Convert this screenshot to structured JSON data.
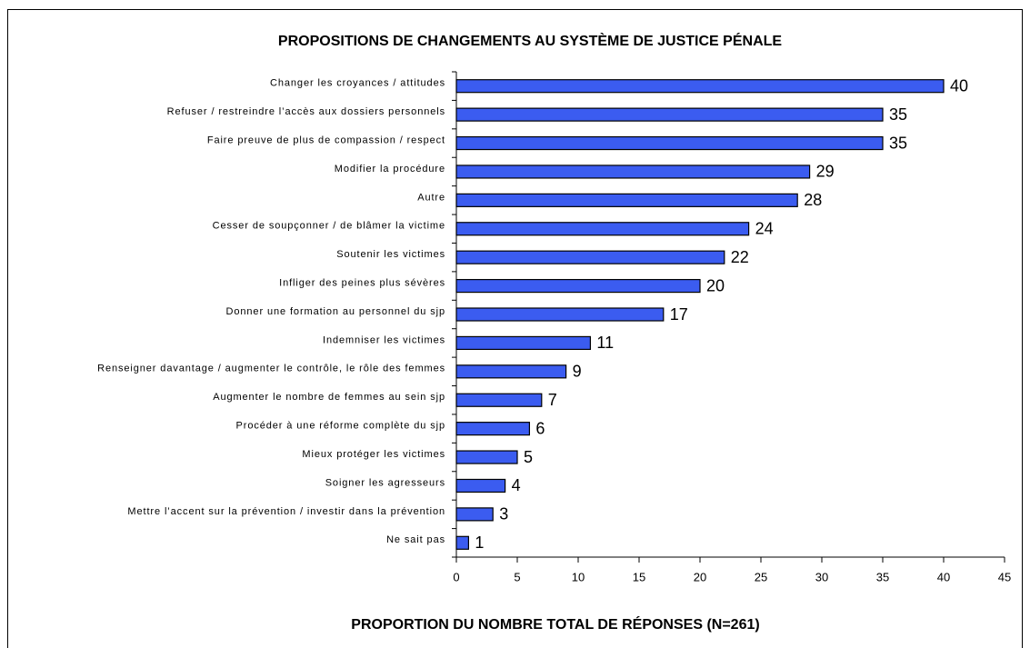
{
  "chart_data": {
    "type": "bar",
    "title": "PROPOSITIONS DE CHANGEMENTS AU SYSTÈME DE JUSTICE PÉNALE",
    "x_label": "PROPORTION DU NOMBRE TOTAL DE RÉPONSES (N=261)",
    "categories": [
      "Changer les croyances / attitudes",
      "Refuser / restreindre l’accès aux dossiers personnels",
      "Faire preuve de plus de compassion / respect",
      "Modifier la procédure",
      "Autre",
      "Cesser de soupçonner / de blâmer la victime",
      "Soutenir les victimes",
      "Infliger des peines plus sévères",
      "Donner une formation au personnel du sjp",
      "Indemniser les victimes",
      "Renseigner davantage / augmenter le contrôle, le rôle des femmes",
      "Augmenter le nombre de femmes au sein sjp",
      "Procéder à une réforme complète du sjp",
      "Mieux protéger les victimes",
      "Soigner les agresseurs",
      "Mettre l’accent sur la prévention / investir dans la prévention",
      "Ne sait pas"
    ],
    "values": [
      40,
      35,
      35,
      29,
      28,
      24,
      22,
      20,
      17,
      11,
      9,
      7,
      6,
      5,
      4,
      3,
      1
    ],
    "color": "#3b5cf0",
    "xlim": [
      0,
      45
    ],
    "xticks": [
      0,
      5,
      10,
      15,
      20,
      25,
      30,
      35,
      40,
      45
    ]
  }
}
